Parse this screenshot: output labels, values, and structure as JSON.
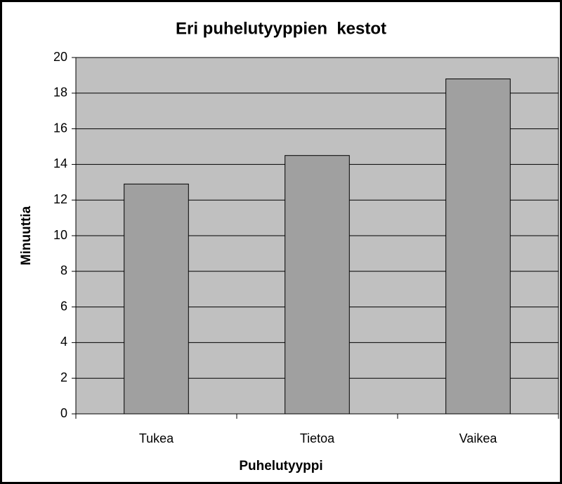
{
  "chart_data": {
    "type": "bar",
    "title": "Eri puhelutyyppien  kestot",
    "x_label": "Puhelutyyppi",
    "y_label": "Minuuttia",
    "categories": [
      "Tukea",
      "Tietoa",
      "Vaikea"
    ],
    "values": [
      12.9,
      14.5,
      18.8
    ],
    "color": "#a0a0a0",
    "plot_background": "#c0c0c0",
    "ylim": [
      0,
      20
    ],
    "yticks": [
      0,
      2,
      4,
      6,
      8,
      10,
      12,
      14,
      16,
      18,
      20
    ],
    "grid": true
  }
}
